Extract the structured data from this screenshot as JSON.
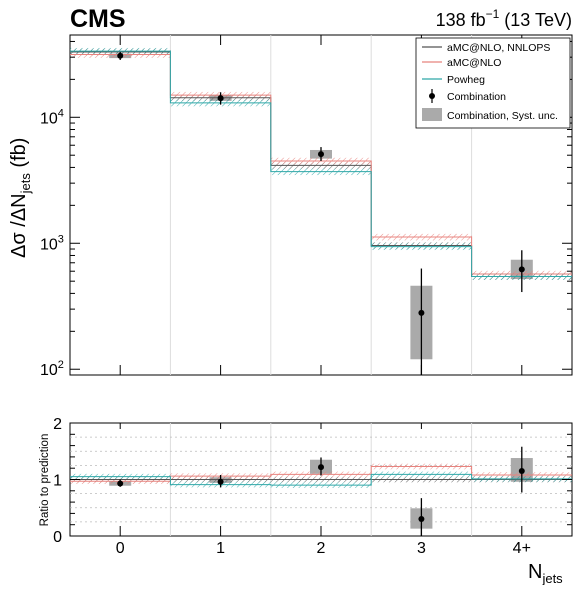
{
  "header": {
    "experiment": "CMS",
    "lumi_prefix": "138 fb",
    "lumi_exp": "−1",
    "lumi_suffix": " (13 TeV)"
  },
  "chart_data": [
    {
      "type": "step",
      "panel": "main",
      "yscale": "log",
      "ylim": [
        90,
        45000
      ],
      "ylabel": "Δσ /ΔN",
      "ylabel_sub": "jets",
      "ylabel_unit": " (fb)",
      "ytick_labels": [
        "10",
        "10",
        "10"
      ],
      "ytick_exps": [
        "2",
        "3",
        "4"
      ],
      "ytick_values": [
        100,
        1000,
        10000
      ],
      "categories": [
        "0",
        "1",
        "2",
        "3",
        "4+"
      ],
      "legend_position": "top-right",
      "series": [
        {
          "name": "aMC@NLO, NNLOPS",
          "color": "#555555",
          "values": [
            33000,
            14300,
            4150,
            960,
            545
          ]
        },
        {
          "name": "aMC@NLO",
          "color": "#e8837e",
          "values": [
            31500,
            15000,
            4500,
            1120,
            570
          ]
        },
        {
          "name": "Powheg",
          "color": "#2fa7a8",
          "values": [
            33500,
            13000,
            3700,
            940,
            545
          ]
        }
      ],
      "combination": {
        "name": "Combination",
        "values": [
          30800,
          14200,
          5100,
          280,
          620
        ],
        "err_low": [
          28500,
          12600,
          4500,
          90,
          410
        ],
        "err_high": [
          33000,
          15800,
          5800,
          630,
          880
        ]
      },
      "syst": {
        "name": "Combination, Syst. unc.",
        "low": [
          29500,
          13500,
          4700,
          120,
          520
        ],
        "high": [
          32000,
          14900,
          5500,
          460,
          740
        ]
      }
    },
    {
      "type": "step",
      "panel": "ratio",
      "ylabel": "Ratio to prediction",
      "ylim": [
        0,
        2
      ],
      "ytick_labels": [
        "0",
        "1",
        "2"
      ],
      "ytick_values": [
        0,
        1,
        2
      ],
      "xlabel": "N",
      "xlabel_sub": "jets",
      "categories": [
        "0",
        "1",
        "2",
        "3",
        "4+"
      ],
      "series": [
        {
          "name": "aMC@NLO, NNLOPS",
          "values": [
            1.0,
            1.0,
            1.0,
            1.0,
            1.0
          ]
        },
        {
          "name": "aMC@NLO",
          "values": [
            0.97,
            1.06,
            1.09,
            1.23,
            1.08
          ]
        },
        {
          "name": "Powheg",
          "values": [
            1.05,
            0.91,
            0.9,
            1.09,
            1.01
          ]
        }
      ],
      "combination": {
        "values": [
          0.93,
          0.96,
          1.22,
          0.3,
          1.15
        ],
        "err_low": [
          0.87,
          0.86,
          1.07,
          0.0,
          0.77
        ],
        "err_high": [
          1.0,
          1.08,
          1.39,
          0.67,
          1.58
        ]
      },
      "syst": {
        "low": [
          0.89,
          0.94,
          1.1,
          0.13,
          0.96
        ],
        "high": [
          0.97,
          1.04,
          1.35,
          0.49,
          1.38
        ]
      }
    }
  ]
}
